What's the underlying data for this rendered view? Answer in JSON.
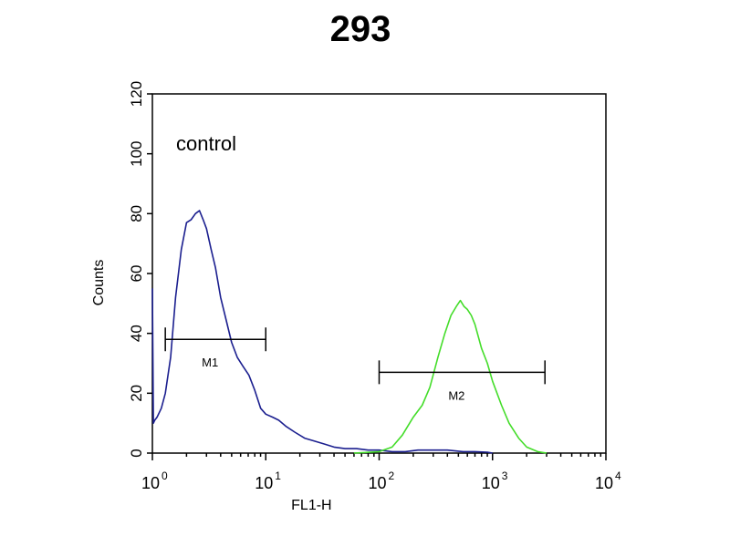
{
  "chart_data": {
    "type": "line",
    "title": "293",
    "xlabel": "FL1-H",
    "ylabel": "Counts",
    "x_scale": "log",
    "xlim": [
      1,
      10000
    ],
    "ylim": [
      0,
      120
    ],
    "xtick_labels": [
      {
        "base": "10",
        "exp": "0",
        "value": 1
      },
      {
        "base": "10",
        "exp": "1",
        "value": 10
      },
      {
        "base": "10",
        "exp": "2",
        "value": 100
      },
      {
        "base": "10",
        "exp": "3",
        "value": 1000
      },
      {
        "base": "10",
        "exp": "4",
        "value": 10000
      }
    ],
    "ytick_labels": [
      "0",
      "20",
      "40",
      "60",
      "80",
      "100",
      "120"
    ],
    "yticks": [
      0,
      20,
      40,
      60,
      80,
      100,
      120
    ],
    "grid": false,
    "annotation": "control",
    "series": [
      {
        "color": "#1b1f8f",
        "x": [
          1.0,
          1.02,
          1.05,
          1.1,
          1.2,
          1.3,
          1.45,
          1.6,
          1.8,
          2.0,
          2.2,
          2.4,
          2.6,
          2.8,
          3.0,
          3.3,
          3.6,
          4.0,
          4.5,
          5.0,
          5.6,
          6.3,
          7.1,
          8.0,
          9.0,
          10.0,
          11.5,
          13,
          15,
          18,
          22,
          27,
          33,
          40,
          50,
          63,
          80,
          100,
          130,
          170,
          220,
          300,
          400,
          550,
          700,
          900,
          1000
        ],
        "y": [
          55,
          10,
          11,
          12,
          15,
          20,
          32,
          52,
          68,
          77,
          78,
          80,
          81,
          78,
          75,
          68,
          62,
          52,
          44,
          37,
          32,
          29,
          26,
          21,
          15,
          13,
          12,
          11,
          9,
          7,
          5,
          4,
          3,
          2,
          1.5,
          1.5,
          1,
          1,
          0.5,
          0.5,
          1,
          1,
          1,
          0.5,
          0.5,
          0.3,
          0
        ]
      },
      {
        "color": "#44dd2a",
        "x": [
          60,
          100,
          130,
          160,
          200,
          240,
          280,
          330,
          380,
          430,
          480,
          520,
          560,
          600,
          650,
          700,
          800,
          900,
          1000,
          1200,
          1400,
          1700,
          2000,
          2500,
          3000
        ],
        "y": [
          0,
          0.5,
          2,
          6,
          12,
          16,
          22,
          32,
          40,
          46,
          49,
          51,
          49,
          48,
          46,
          43,
          35,
          30,
          24,
          16,
          10,
          5,
          2,
          0.5,
          0
        ]
      }
    ],
    "markers": [
      {
        "label": "M1",
        "x_start": 1.3,
        "x_end": 10,
        "y": 38
      },
      {
        "label": "M2",
        "x_start": 100,
        "x_end": 2900,
        "y": 27
      }
    ]
  }
}
